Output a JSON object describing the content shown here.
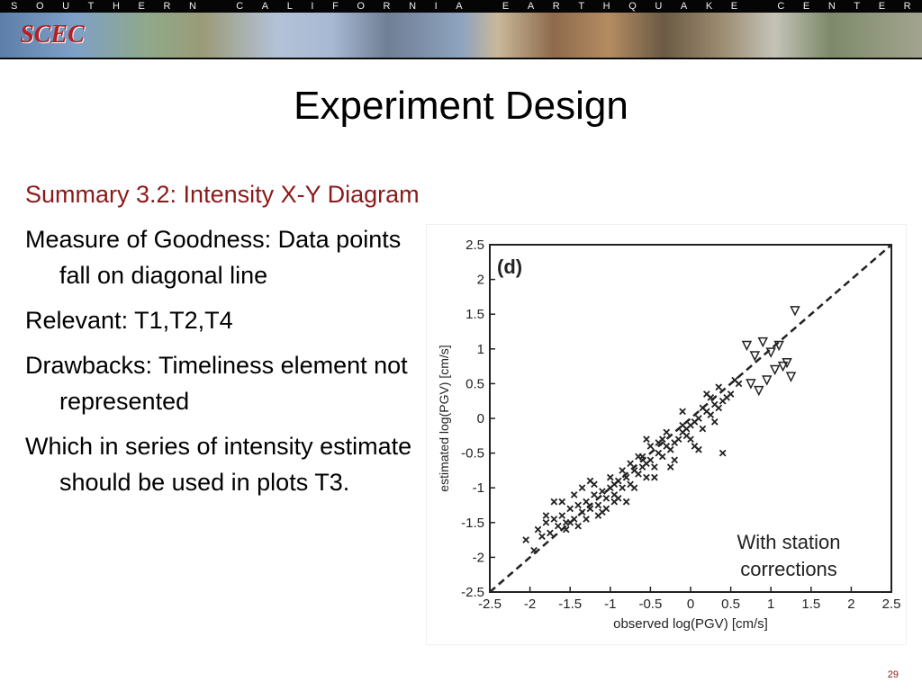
{
  "banner": {
    "letters": [
      "S",
      "O",
      "U",
      "T",
      "H",
      "E",
      "R",
      "N",
      "",
      "C",
      "A",
      "L",
      "I",
      "F",
      "O",
      "R",
      "N",
      "I",
      "A",
      "",
      "E",
      "A",
      "R",
      "T",
      "H",
      "Q",
      "U",
      "A",
      "K",
      "E",
      "",
      "C",
      "E",
      "N",
      "T",
      "E",
      "R"
    ],
    "logo_text": "SCEC",
    "accent_color": "#8b1a1a"
  },
  "slide": {
    "title": "Experiment Design",
    "bullets": [
      {
        "text": "Summary 3.2: Intensity X-Y Diagram",
        "accent": true
      },
      {
        "text": "Measure of Goodness: Data points fall on diagonal line",
        "accent": false
      },
      {
        "text": "Relevant: T1,T2,T4",
        "accent": false
      },
      {
        "text": "Drawbacks: Timeliness element not represented",
        "accent": false
      },
      {
        "text": "Which in series of intensity estimate should be used in plots T3.",
        "accent": false
      }
    ],
    "page_number": "29"
  },
  "chart_data": {
    "type": "scatter",
    "panel_label": "(d)",
    "xlabel": "observed log(PGV) [cm/s]",
    "ylabel": "estimated log(PGV) [cm/s]",
    "xlim": [
      -2.5,
      2.5
    ],
    "ylim": [
      -2.5,
      2.5
    ],
    "x_ticks": [
      "-2.5",
      "-2",
      "-1.5",
      "-1",
      "-0.5",
      "0",
      "0.5",
      "1",
      "1.5",
      "2",
      "2.5"
    ],
    "y_ticks": [
      "2.5",
      "2",
      "1.5",
      "1",
      "0.5",
      "0",
      "-0.5",
      "-1",
      "-1.5",
      "-2",
      "-2.5"
    ],
    "annotation": [
      "With station",
      "corrections"
    ],
    "reference_line": {
      "x": [
        -2.5,
        2.5
      ],
      "y": [
        -2.5,
        2.5
      ],
      "style": "dashed"
    },
    "series": [
      {
        "marker": "x",
        "x": [
          -2.05,
          -1.95,
          -1.9,
          -1.85,
          -1.8,
          -1.75,
          -1.7,
          -1.65,
          -1.6,
          -1.55,
          -1.5,
          -1.45,
          -1.4,
          -1.35,
          -1.3,
          -1.25,
          -1.2,
          -1.15,
          -1.1,
          -1.05,
          -1.0,
          -0.95,
          -0.9,
          -0.85,
          -0.8,
          -0.75,
          -0.7,
          -0.65,
          -0.6,
          -0.55,
          -0.5,
          -0.45,
          -0.4,
          -0.35,
          -0.3,
          -0.25,
          -0.2,
          -0.15,
          -0.1,
          -0.05,
          0.0,
          0.05,
          0.1,
          0.15,
          0.2,
          0.25,
          0.3,
          0.35,
          0.4,
          0.45,
          0.5,
          -1.8,
          -1.7,
          -1.55,
          -1.45,
          -1.3,
          -1.2,
          -1.05,
          -0.95,
          -0.85,
          -0.7,
          -0.6,
          -0.45,
          -0.35,
          -0.2,
          -0.1,
          0.05,
          0.15,
          0.3,
          -1.6,
          -1.4,
          -1.25,
          -1.1,
          -0.9,
          -0.75,
          -0.55,
          -0.4,
          -0.25,
          -0.05,
          0.1,
          0.25,
          -1.35,
          -1.15,
          -0.8,
          -0.5,
          -0.3,
          0.0,
          0.2,
          -1.5,
          -1.0,
          -0.65,
          0.35,
          0.55,
          0.6,
          -0.95,
          -0.55,
          -0.1,
          0.4
        ],
        "y": [
          -1.75,
          -1.9,
          -1.6,
          -1.7,
          -1.5,
          -1.65,
          -1.45,
          -1.55,
          -1.4,
          -1.5,
          -1.3,
          -1.45,
          -1.25,
          -1.35,
          -1.2,
          -1.3,
          -1.1,
          -1.25,
          -1.05,
          -1.15,
          -1.0,
          -1.1,
          -0.9,
          -1.0,
          -0.85,
          -0.95,
          -0.75,
          -0.8,
          -0.7,
          -0.65,
          -0.6,
          -0.7,
          -0.5,
          -0.55,
          -0.4,
          -0.45,
          -0.35,
          -0.3,
          -0.2,
          -0.25,
          -0.1,
          -0.05,
          0.0,
          -0.15,
          0.1,
          0.05,
          0.2,
          0.15,
          0.25,
          0.3,
          0.35,
          -1.4,
          -1.2,
          -1.6,
          -1.1,
          -1.45,
          -0.95,
          -1.3,
          -1.2,
          -0.75,
          -1.0,
          -0.55,
          -0.85,
          -0.3,
          -0.6,
          -0.1,
          -0.4,
          0.15,
          -0.05,
          -1.2,
          -1.55,
          -0.9,
          -1.35,
          -1.15,
          -0.65,
          -0.85,
          -0.35,
          -0.7,
          -0.15,
          -0.45,
          0.3,
          -1.0,
          -1.4,
          -1.2,
          -0.4,
          -0.2,
          -0.3,
          0.35,
          -1.5,
          -0.85,
          -0.55,
          0.45,
          0.55,
          0.5,
          -0.95,
          -0.3,
          0.1,
          -0.5
        ]
      },
      {
        "marker": "triangle-down",
        "x": [
          0.7,
          0.8,
          0.9,
          1.0,
          1.1,
          1.2,
          1.3,
          1.05,
          0.95,
          1.15,
          0.85,
          1.25,
          0.75
        ],
        "y": [
          1.05,
          0.9,
          1.1,
          0.95,
          1.05,
          0.8,
          1.55,
          0.7,
          0.55,
          0.75,
          0.4,
          0.6,
          0.5
        ]
      }
    ]
  }
}
